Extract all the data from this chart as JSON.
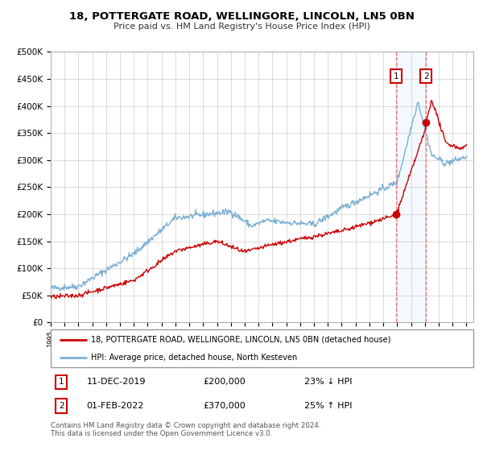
{
  "title": "18, POTTERGATE ROAD, WELLINGORE, LINCOLN, LN5 0BN",
  "subtitle": "Price paid vs. HM Land Registry's House Price Index (HPI)",
  "ylim": [
    0,
    500000
  ],
  "yticks": [
    0,
    50000,
    100000,
    150000,
    200000,
    250000,
    300000,
    350000,
    400000,
    450000,
    500000
  ],
  "ytick_labels": [
    "£0",
    "£50K",
    "£100K",
    "£150K",
    "£200K",
    "£250K",
    "£300K",
    "£350K",
    "£400K",
    "£450K",
    "£500K"
  ],
  "sale1_date": "11-DEC-2019",
  "sale1_price": 200000,
  "sale1_price_str": "£200,000",
  "sale1_pct": "23% ↓ HPI",
  "sale2_date": "01-FEB-2022",
  "sale2_price": 370000,
  "sale2_price_str": "£370,000",
  "sale2_pct": "25% ↑ HPI",
  "legend_line1": "18, POTTERGATE ROAD, WELLINGORE, LINCOLN, LN5 0BN (detached house)",
  "legend_line2": "HPI: Average price, detached house, North Kesteven",
  "footer": "Contains HM Land Registry data © Crown copyright and database right 2024.\nThis data is licensed under the Open Government Licence v3.0.",
  "hpi_color": "#7ab0d4",
  "price_color": "#cc0000",
  "sale1_x": 2019.94,
  "sale2_x": 2022.08,
  "background_color": "#ffffff",
  "plot_bg_color": "#ffffff",
  "grid_color": "#cccccc",
  "shade_color": "#ddeeff",
  "vline_color": "#ee6666"
}
